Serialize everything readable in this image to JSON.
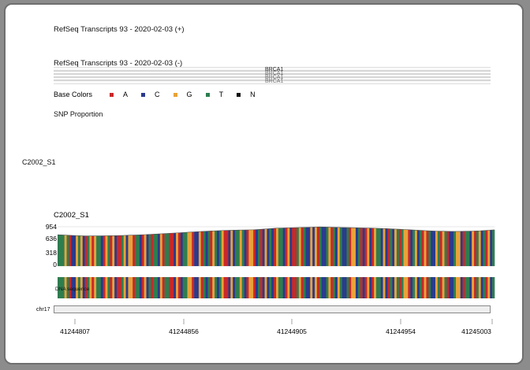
{
  "tracks": {
    "plus_title": "RefSeq Transcripts 93 - 2020-02-03 (+)",
    "minus_title": "RefSeq Transcripts 93 - 2020-02-03 (-)",
    "gene_label": "BRCA1",
    "base_colors_label": "Base Colors",
    "snp_label": "SNP Proportion",
    "sample_label": "C2002_S1"
  },
  "legend": [
    {
      "base": "A",
      "color": "#c8282a"
    },
    {
      "base": "C",
      "color": "#2a3a8c"
    },
    {
      "base": "G",
      "color": "#e8a23a"
    },
    {
      "base": "T",
      "color": "#2e7d4f"
    },
    {
      "base": "N",
      "color": "#111111"
    }
  ],
  "coverage": {
    "title": "C2002_S1",
    "ticks": [
      "954",
      "636",
      "318",
      "0"
    ]
  },
  "dna_label": "DNA sequence",
  "chromosome": "chr17",
  "positions": [
    "41244807",
    "41244856",
    "41244905",
    "41244954",
    "41245003"
  ],
  "chart_data": {
    "type": "bar",
    "title": "C2002_S1",
    "ylim": [
      0,
      954
    ],
    "yticks": [
      0,
      318,
      636,
      954
    ],
    "x_start": 41244807,
    "x_end": 41245003,
    "bases": "TTTGTACCGTGCATGAGTTCAGTAGCAATGCGGATTCAGCTATTCGATTAACGACTTGGACCGATCTAGTCTGAACGCTTGTCAGGACTACGCTCAGTTCAGCAATGATCCGCGATCCTGATCGTCCTAGGCTACAGCAGTTCGCATCGTATGGACTGCTAGATCCGTAGTACCTGGCATTCGATGCTAGCT",
    "depth_profile": [
      [
        41244807,
        760
      ],
      [
        41244820,
        730
      ],
      [
        41244835,
        740
      ],
      [
        41244845,
        760
      ],
      [
        41244856,
        790
      ],
      [
        41244865,
        820
      ],
      [
        41244875,
        850
      ],
      [
        41244885,
        870
      ],
      [
        41244895,
        880
      ],
      [
        41244905,
        920
      ],
      [
        41244915,
        935
      ],
      [
        41244925,
        950
      ],
      [
        41244935,
        935
      ],
      [
        41244945,
        925
      ],
      [
        41244954,
        910
      ],
      [
        41244965,
        880
      ],
      [
        41244975,
        850
      ],
      [
        41244985,
        840
      ],
      [
        41244995,
        850
      ],
      [
        41245003,
        880
      ]
    ]
  }
}
